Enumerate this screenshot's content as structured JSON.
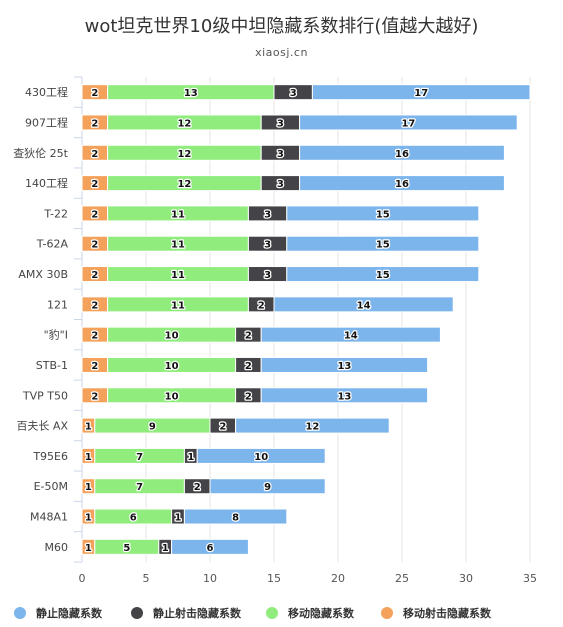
{
  "chart_data": {
    "type": "bar",
    "orientation": "horizontal",
    "stacked": true,
    "title": "wot坦克世界10级中坦隐藏系数排行(值越大越好)",
    "subtitle": "xiaosj.cn",
    "categories": [
      "430工程",
      "907工程",
      "查狄伦 25t",
      "140工程",
      "T-22",
      "T-62A",
      "AMX 30B",
      "121",
      "\"豹\"I",
      "STB-1",
      "TVP T50",
      "百夫长 AX",
      "T95E6",
      "E-50M",
      "M48A1",
      "M60"
    ],
    "series": [
      {
        "name": "移动射击隐藏系数",
        "color": "#f4a25b",
        "values": [
          2,
          2,
          2,
          2,
          2,
          2,
          2,
          2,
          2,
          2,
          2,
          1,
          1,
          1,
          1,
          1
        ]
      },
      {
        "name": "移动隐藏系数",
        "color": "#90ed7d",
        "values": [
          13,
          12,
          12,
          12,
          11,
          11,
          11,
          11,
          10,
          10,
          10,
          9,
          7,
          7,
          6,
          5
        ]
      },
      {
        "name": "静止射击隐藏系数",
        "color": "#434348",
        "values": [
          3,
          3,
          3,
          3,
          3,
          3,
          3,
          2,
          2,
          2,
          2,
          2,
          1,
          2,
          1,
          1
        ]
      },
      {
        "name": "静止隐藏系数",
        "color": "#7cb5ec",
        "values": [
          17,
          17,
          16,
          16,
          15,
          15,
          15,
          14,
          14,
          13,
          13,
          12,
          10,
          9,
          8,
          6
        ]
      }
    ],
    "xlim": [
      0,
      35
    ],
    "xticks": [
      0,
      5,
      10,
      15,
      20,
      25,
      30,
      35
    ],
    "grid": true,
    "legend_position": "bottom",
    "legend_order": [
      "静止隐藏系数",
      "静止射击隐藏系数",
      "移动隐藏系数",
      "移动射击隐藏系数"
    ]
  }
}
